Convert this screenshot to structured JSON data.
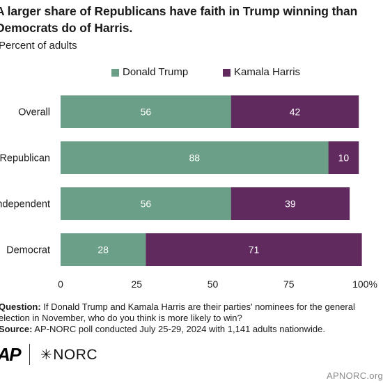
{
  "title": "A larger share of Republicans have faith in Trump winning than Democrats do of Harris.",
  "subtitle": "Percent of adults",
  "colors": {
    "trump": "#6b9f88",
    "harris": "#612a5f",
    "axis": "#333333",
    "text": "#1a1a1a"
  },
  "chart_data": {
    "type": "bar",
    "orientation": "horizontal",
    "stacked": true,
    "categories": [
      "Overall",
      "Republican",
      "Independent",
      "Democrat"
    ],
    "series": [
      {
        "name": "Donald Trump",
        "values": [
          56,
          88,
          56,
          28
        ]
      },
      {
        "name": "Kamala Harris",
        "values": [
          42,
          10,
          39,
          71
        ]
      }
    ],
    "xlim": [
      0,
      100
    ],
    "xticks": [
      "0",
      "25",
      "50",
      "75",
      "100%"
    ],
    "xtick_values": [
      0,
      25,
      50,
      75,
      100
    ],
    "legend_position": "top",
    "grid": false
  },
  "notes": {
    "question_label": "Question:",
    "question_text": " If Donald Trump and Kamala Harris are their parties' nominees for the general election in November, who do you think is more likely to win?",
    "source_label": "Source:",
    "source_text": " AP-NORC poll conducted July 25-29, 2024 with 1,141 adults nationwide."
  },
  "logos": {
    "ap": "AP",
    "norc": "NORC",
    "norc_mark": "✳"
  },
  "site_url": "APNORC.org"
}
